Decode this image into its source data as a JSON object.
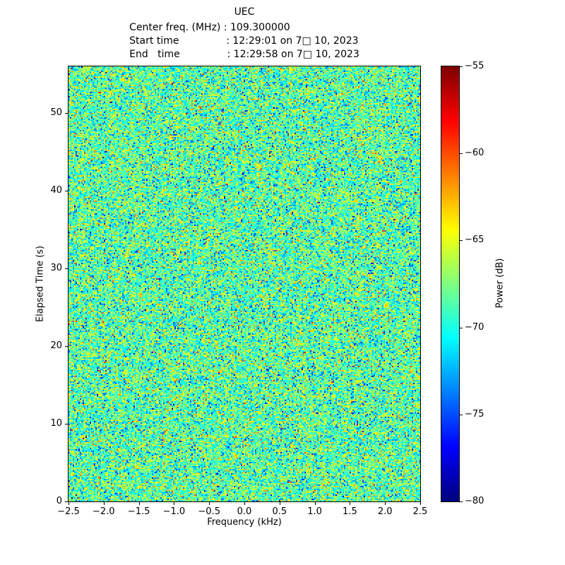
{
  "header": {
    "title": "UEC",
    "line_center_freq": "Center freq. (MHz) : 109.300000",
    "line_start": "Start time               : 12:29:01 on 7□ 10, 2023",
    "line_end": "End   time               : 12:29:58 on 7□ 10, 2023"
  },
  "chart_data": {
    "type": "heatmap",
    "title": "UEC",
    "subtitle_lines": [
      "Center freq. (MHz) : 109.300000",
      "Start time : 12:29:01 on 7□ 10, 2023",
      "End time : 12:29:58 on 7□ 10, 2023"
    ],
    "center_freq_mhz": 109.3,
    "start_time": "12:29:01 on 7□ 10, 2023",
    "end_time": "12:29:58 on 7□ 10, 2023",
    "xlabel": "Frequency (kHz)",
    "ylabel": "Elapsed Time (s)",
    "x_range": [
      -2.5,
      2.5
    ],
    "y_range": [
      0,
      56
    ],
    "x_ticks": [
      -2.5,
      -2.0,
      -1.5,
      -1.0,
      -0.5,
      0.0,
      0.5,
      1.0,
      1.5,
      2.0,
      2.5
    ],
    "x_tick_labels": [
      "−2.5",
      "−2.0",
      "−1.5",
      "−1.0",
      "−0.5",
      "0.0",
      "0.5",
      "1.0",
      "1.5",
      "2.0",
      "2.5"
    ],
    "y_ticks": [
      0,
      10,
      20,
      30,
      40,
      50
    ],
    "y_tick_labels": [
      "0",
      "10",
      "20",
      "30",
      "40",
      "50"
    ],
    "grid": false,
    "colorbar": {
      "label": "Power (dB)",
      "range": [
        -80,
        -55
      ],
      "ticks": [
        -55,
        -60,
        -65,
        -70,
        -75,
        -80
      ],
      "tick_labels": [
        "−55",
        "−60",
        "−65",
        "−70",
        "−75",
        "−80"
      ],
      "colormap": "jet",
      "position": "right"
    },
    "values_description": "broadband random noise floor, no visible signal",
    "noise": {
      "distribution": "gaussian",
      "mean_db": -68.5,
      "std_db": 3.0,
      "clip_db": [
        -80,
        -55
      ],
      "seed": 42
    }
  }
}
